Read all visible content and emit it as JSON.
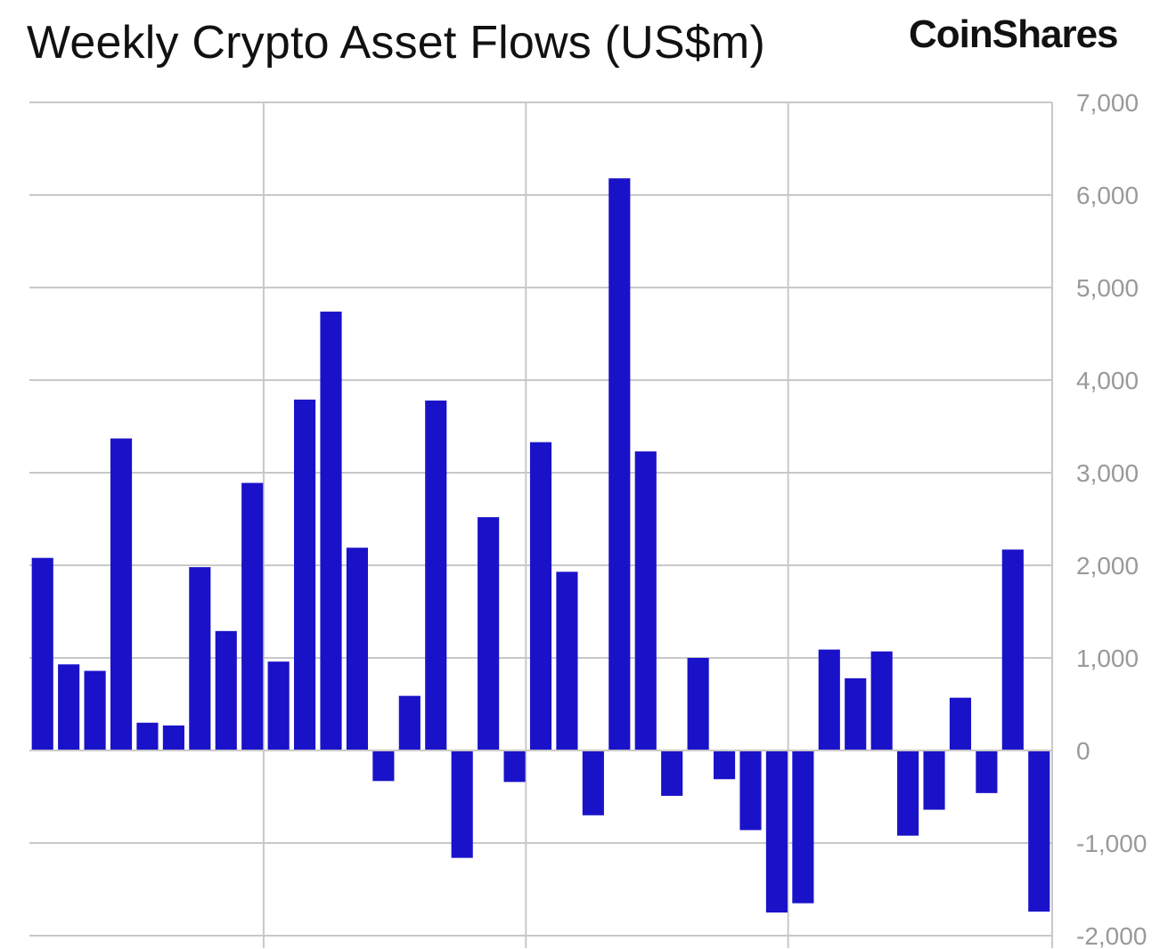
{
  "header": {
    "title": "Weekly Crypto Asset Flows (US$m)",
    "logo": "CoinShares"
  },
  "chart_data": {
    "type": "bar",
    "title": "Weekly Crypto Asset Flows (US$m)",
    "xlabel": "",
    "ylabel": "",
    "ylim": [
      -2000,
      7000
    ],
    "yticks": [
      7000,
      6000,
      5000,
      4000,
      3000,
      2000,
      1000,
      0,
      -1000,
      -2000
    ],
    "ytick_labels": [
      "7,000",
      "6,000",
      "5,000",
      "4,000",
      "3,000",
      "2,000",
      "1,000",
      "0",
      "-1,000",
      "-2,000"
    ],
    "y_axis_position": "right",
    "grid": true,
    "legend": "none",
    "bar_color": "#1A12C8",
    "values": [
      2080,
      930,
      860,
      3370,
      300,
      270,
      1980,
      1290,
      2890,
      960,
      3790,
      4740,
      2190,
      -330,
      590,
      3780,
      -1160,
      2520,
      -340,
      3330,
      1930,
      -700,
      6180,
      3230,
      -490,
      1000,
      -310,
      -860,
      -1750,
      -1650,
      1090,
      780,
      1070,
      -920,
      -640,
      570,
      -460,
      2170,
      -1740
    ]
  }
}
